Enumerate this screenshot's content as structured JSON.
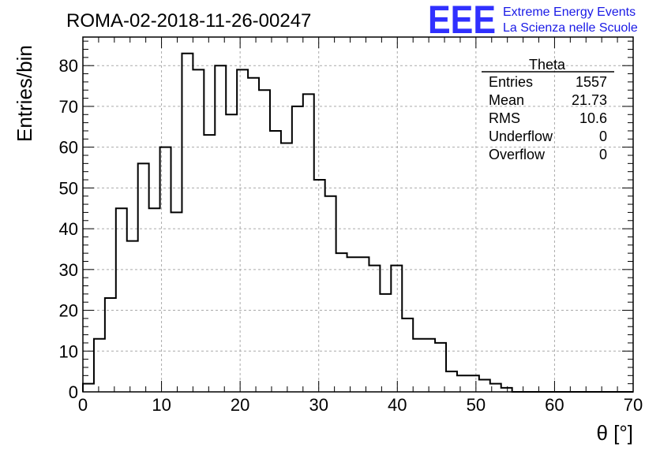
{
  "chart_data": {
    "type": "bar",
    "title": "ROMA-02-2018-11-26-00247",
    "xlabel": "θ [°]",
    "ylabel": "Entries/bin",
    "xlim": [
      0,
      70
    ],
    "ylim": [
      0,
      87
    ],
    "grid": true,
    "bin_width": 1.4,
    "x_ticks": [
      0,
      10,
      20,
      30,
      40,
      50,
      60,
      70
    ],
    "y_ticks": [
      0,
      10,
      20,
      30,
      40,
      50,
      60,
      70,
      80
    ],
    "values": [
      2,
      13,
      23,
      45,
      37,
      56,
      45,
      60,
      44,
      83,
      79,
      63,
      80,
      68,
      79,
      77,
      74,
      64,
      61,
      70,
      73,
      52,
      48,
      34,
      33,
      33,
      31,
      24,
      31,
      18,
      13,
      13,
      12,
      5,
      4,
      4,
      3,
      2,
      1,
      0,
      0,
      0,
      0,
      0,
      0,
      0,
      0,
      0,
      0,
      0
    ],
    "stats": {
      "name": "Theta",
      "rows": [
        {
          "label": "Entries",
          "value": "1557"
        },
        {
          "label": "Mean",
          "value": "21.73"
        },
        {
          "label": "RMS",
          "value": "10.6"
        },
        {
          "label": "Underflow",
          "value": "0"
        },
        {
          "label": "Overflow",
          "value": "0"
        }
      ]
    }
  },
  "logo": {
    "mark": "EEE",
    "line1": "Extreme Energy Events",
    "line2": "La Scienza nelle Scuole"
  }
}
